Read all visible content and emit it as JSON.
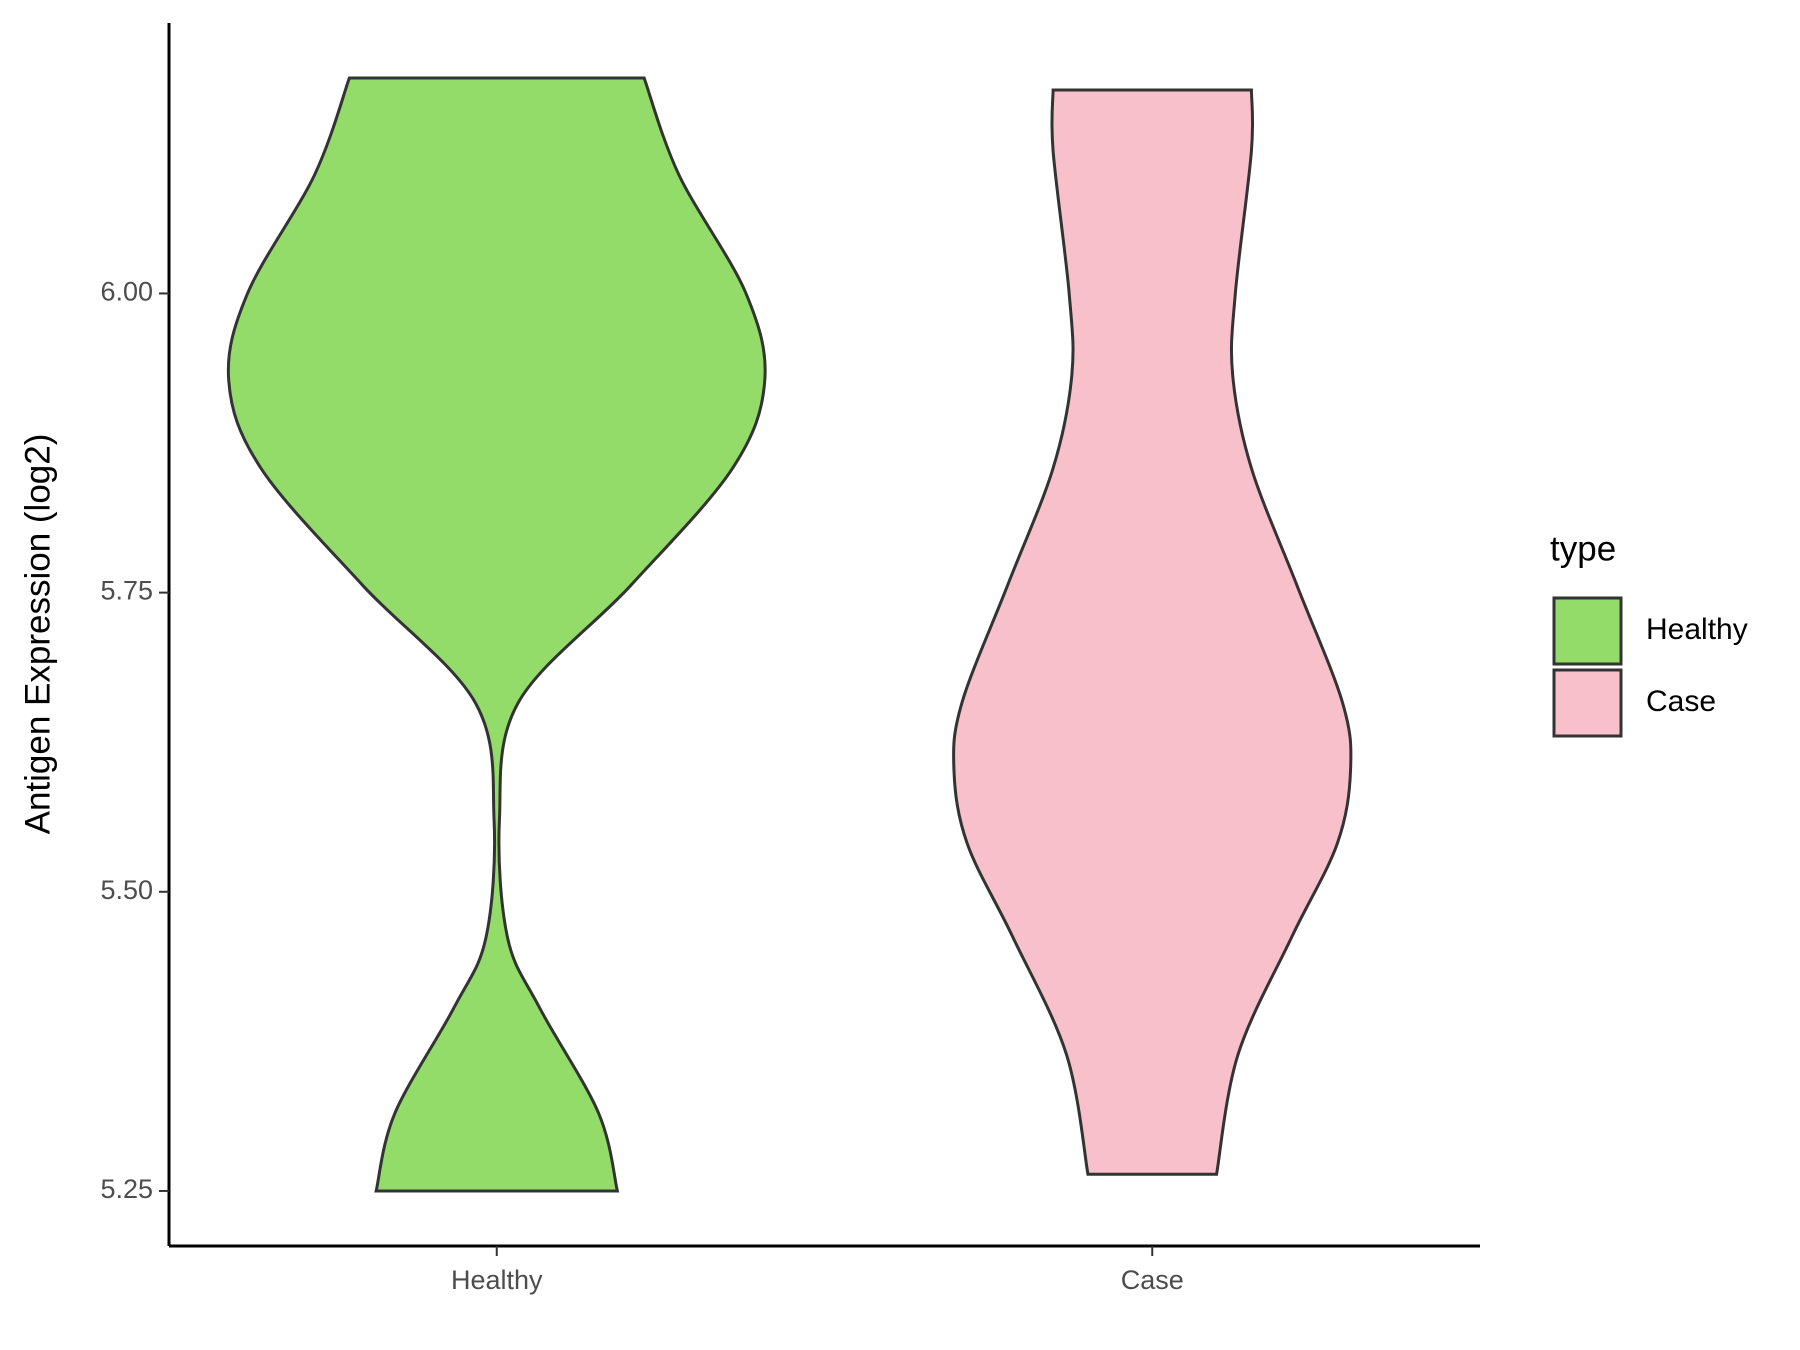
{
  "chart_data": {
    "type": "violin",
    "y_label": "Antigen Expression (log2)",
    "categories": [
      "Healthy",
      "Case"
    ],
    "legend_title": "type",
    "legend_position": "right",
    "series": [
      {
        "name": "Healthy",
        "color": "#93dc6a",
        "y": [
          6.18,
          6.099,
          6.0,
          5.927,
          5.854,
          5.756,
          5.658,
          5.56,
          5.462,
          5.403,
          5.315,
          5.25
        ],
        "density": [
          0.55,
          0.68,
          0.93,
          1.0,
          0.88,
          0.5,
          0.08,
          0.01,
          0.04,
          0.16,
          0.38,
          0.45
        ]
      },
      {
        "name": "Case",
        "color": "#f7c0cb",
        "y": [
          6.17,
          6.119,
          6.0,
          5.932,
          5.854,
          5.756,
          5.658,
          5.602,
          5.54,
          5.462,
          5.364,
          5.264
        ],
        "density": [
          0.37,
          0.37,
          0.31,
          0.3,
          0.37,
          0.54,
          0.71,
          0.74,
          0.69,
          0.52,
          0.32,
          0.24
        ]
      }
    ],
    "ylim": [
      5.204,
      6.226
    ],
    "yticks": [
      {
        "value": 5.25,
        "label": "5.25"
      },
      {
        "value": 5.5,
        "label": "5.50"
      },
      {
        "value": 5.75,
        "label": "5.75"
      },
      {
        "value": 6,
        "label": "6.00"
      }
    ],
    "grid": false
  }
}
